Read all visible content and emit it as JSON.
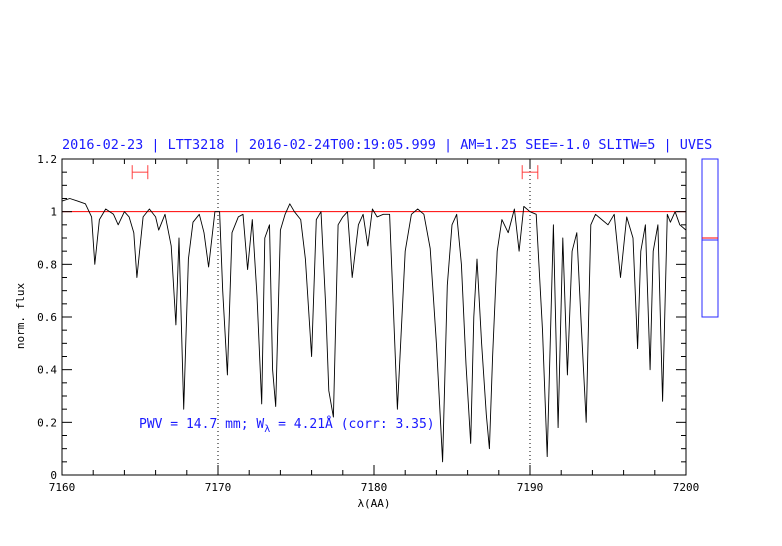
{
  "chart_data": {
    "type": "line",
    "header": "2016-02-23 | LTT3218 | 2016-02-24T00:19:05.999 | AM=1.25 SEE=-1.0 SLITW=5 | UVES",
    "xlabel": "λ(AA)",
    "ylabel": "norm. flux",
    "xlim": [
      7160,
      7200
    ],
    "ylim": [
      0,
      1.2
    ],
    "x_ticks": [
      7160,
      7170,
      7180,
      7190,
      7200
    ],
    "x_tick_labels": [
      "7160",
      "7170",
      "7180",
      "7190",
      "7200"
    ],
    "y_ticks": [
      0,
      0.2,
      0.4,
      0.6,
      0.8,
      1,
      1.2
    ],
    "y_tick_labels": [
      "0",
      "0.2",
      "0.4",
      "0.6",
      "0.8",
      "1",
      "1.2"
    ],
    "continuum_level": 1.0,
    "vertical_markers": [
      7170,
      7190
    ],
    "continuum_windows": [
      {
        "x_start": 7164.5,
        "x_end": 7165.5,
        "y": 1.15
      },
      {
        "x_start": 7189.5,
        "x_end": 7190.5,
        "y": 1.15
      }
    ],
    "annotation": {
      "text_pre": "PWV = 14.7 mm; W",
      "subscript": "λ",
      "text_post": " = 4.21Å (corr: 3.35)"
    },
    "spectrum": {
      "x": [
        7160.0,
        7160.5,
        7161.0,
        7161.5,
        7161.9,
        7162.1,
        7162.4,
        7162.8,
        7163.3,
        7163.6,
        7164.0,
        7164.3,
        7164.6,
        7164.8,
        7165.2,
        7165.6,
        7166.0,
        7166.2,
        7166.6,
        7167.0,
        7167.3,
        7167.5,
        7167.8,
        7168.1,
        7168.4,
        7168.8,
        7169.1,
        7169.4,
        7169.8,
        7170.1,
        7170.3,
        7170.6,
        7170.9,
        7171.3,
        7171.6,
        7171.9,
        7172.2,
        7172.5,
        7172.8,
        7173.0,
        7173.3,
        7173.5,
        7173.7,
        7174.0,
        7174.3,
        7174.6,
        7174.9,
        7175.3,
        7175.6,
        7176.0,
        7176.3,
        7176.6,
        7176.9,
        7177.1,
        7177.4,
        7177.7,
        7178.0,
        7178.3,
        7178.6,
        7179.0,
        7179.3,
        7179.6,
        7179.9,
        7180.2,
        7180.6,
        7181.0,
        7181.5,
        7182.0,
        7182.4,
        7182.8,
        7183.2,
        7183.6,
        7184.0,
        7184.4,
        7184.7,
        7185.0,
        7185.3,
        7185.6,
        7185.9,
        7186.2,
        7186.4,
        7186.6,
        7186.9,
        7187.2,
        7187.4,
        7187.6,
        7187.9,
        7188.2,
        7188.6,
        7189.0,
        7189.3,
        7189.6,
        7190.0,
        7190.4,
        7190.8,
        7191.1,
        7191.5,
        7191.8,
        7192.1,
        7192.4,
        7192.7,
        7193.0,
        7193.3,
        7193.6,
        7193.9,
        7194.2,
        7194.6,
        7195.0,
        7195.4,
        7195.8,
        7196.2,
        7196.6,
        7196.9,
        7197.1,
        7197.4,
        7197.7,
        7197.9,
        7198.2,
        7198.5,
        7198.8,
        7199.0,
        7199.3,
        7199.6,
        7200.0
      ],
      "y": [
        1.04,
        1.05,
        1.04,
        1.03,
        0.98,
        0.8,
        0.97,
        1.01,
        0.99,
        0.95,
        1.0,
        0.98,
        0.92,
        0.75,
        0.98,
        1.01,
        0.98,
        0.93,
        0.99,
        0.87,
        0.57,
        0.9,
        0.25,
        0.82,
        0.96,
        0.99,
        0.92,
        0.79,
        1.0,
        1.0,
        0.7,
        0.38,
        0.92,
        0.98,
        0.99,
        0.78,
        0.97,
        0.68,
        0.27,
        0.9,
        0.95,
        0.4,
        0.26,
        0.93,
        0.99,
        1.03,
        1.0,
        0.97,
        0.82,
        0.45,
        0.97,
        1.0,
        0.65,
        0.32,
        0.22,
        0.95,
        0.98,
        1.0,
        0.75,
        0.95,
        0.99,
        0.87,
        1.01,
        0.98,
        0.99,
        0.99,
        0.25,
        0.85,
        0.99,
        1.01,
        0.99,
        0.86,
        0.5,
        0.05,
        0.72,
        0.95,
        0.99,
        0.8,
        0.42,
        0.12,
        0.6,
        0.82,
        0.5,
        0.23,
        0.1,
        0.45,
        0.85,
        0.97,
        0.92,
        1.01,
        0.85,
        1.02,
        1.0,
        0.99,
        0.55,
        0.07,
        0.95,
        0.18,
        0.9,
        0.38,
        0.85,
        0.92,
        0.55,
        0.2,
        0.95,
        0.99,
        0.97,
        0.95,
        0.99,
        0.75,
        0.98,
        0.9,
        0.48,
        0.85,
        0.95,
        0.4,
        0.85,
        0.95,
        0.28,
        0.99,
        0.96,
        1.0,
        0.95,
        0.93
      ]
    },
    "inset": {
      "line_level": 0.5
    },
    "colors": {
      "spectrum": "#000000",
      "continuum": "#ff0000",
      "window_marker": "#ff4040",
      "header_text": "#1a1aff",
      "inset_border": "#2a2aff",
      "inset_line": "#ff0000"
    }
  }
}
